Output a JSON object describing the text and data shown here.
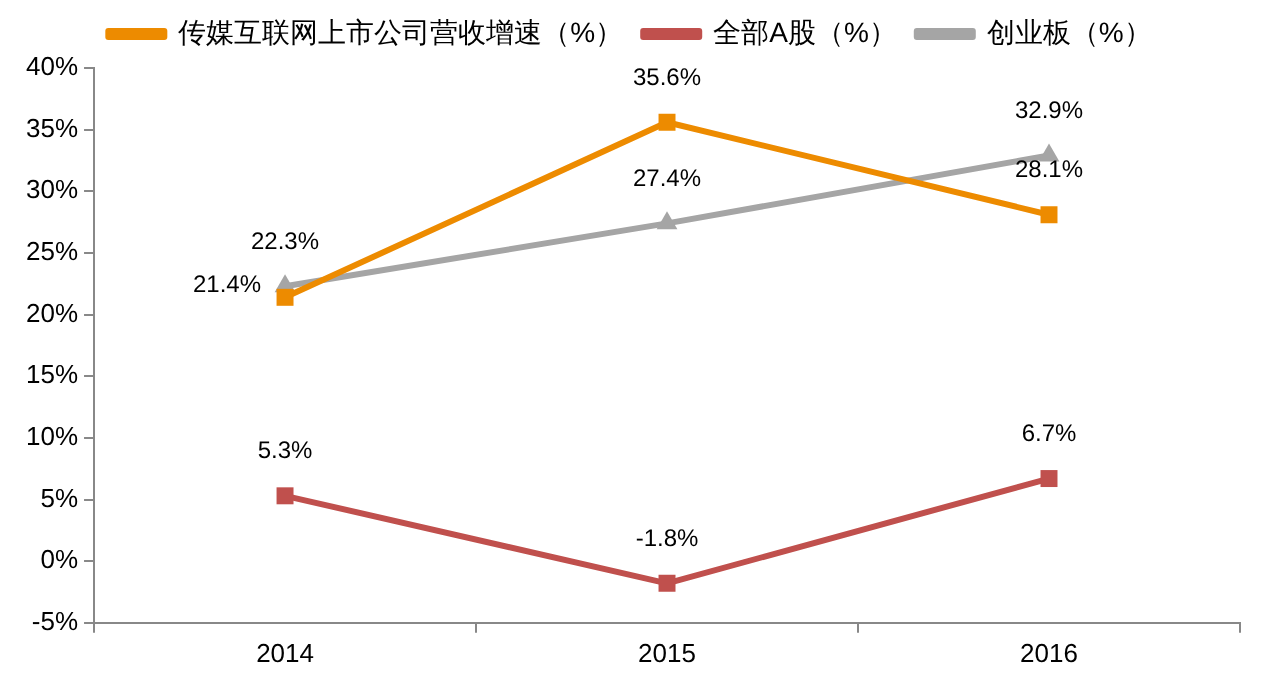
{
  "chart_data": {
    "type": "line",
    "categories": [
      "2014",
      "2015",
      "2016"
    ],
    "series": [
      {
        "name": "传媒互联网上市公司营收增速（%）",
        "color": "#ed8b00",
        "marker": "square",
        "values": [
          21.4,
          35.6,
          28.1
        ],
        "value_labels": [
          "21.4%",
          "35.6%",
          "28.1%"
        ]
      },
      {
        "name": "全部A股（%）",
        "color": "#c0504d",
        "marker": "square",
        "values": [
          5.3,
          -1.8,
          6.7
        ],
        "value_labels": [
          "5.3%",
          "-1.8%",
          "6.7%"
        ]
      },
      {
        "name": "创业板（%）",
        "color": "#a5a5a5",
        "marker": "triangle",
        "values": [
          22.3,
          27.4,
          32.9
        ],
        "value_labels": [
          "22.3%",
          "27.4%",
          "32.9%"
        ]
      }
    ],
    "ylim": [
      -5,
      40
    ],
    "yticks": [
      {
        "value": -5,
        "label": "-5%"
      },
      {
        "value": 0,
        "label": "0%"
      },
      {
        "value": 5,
        "label": "5%"
      },
      {
        "value": 10,
        "label": "10%"
      },
      {
        "value": 15,
        "label": "15%"
      },
      {
        "value": 20,
        "label": "20%"
      },
      {
        "value": 25,
        "label": "25%"
      },
      {
        "value": 30,
        "label": "30%"
      },
      {
        "value": 35,
        "label": "35%"
      },
      {
        "value": 40,
        "label": "40%"
      }
    ],
    "grid": false,
    "legend": "top"
  }
}
